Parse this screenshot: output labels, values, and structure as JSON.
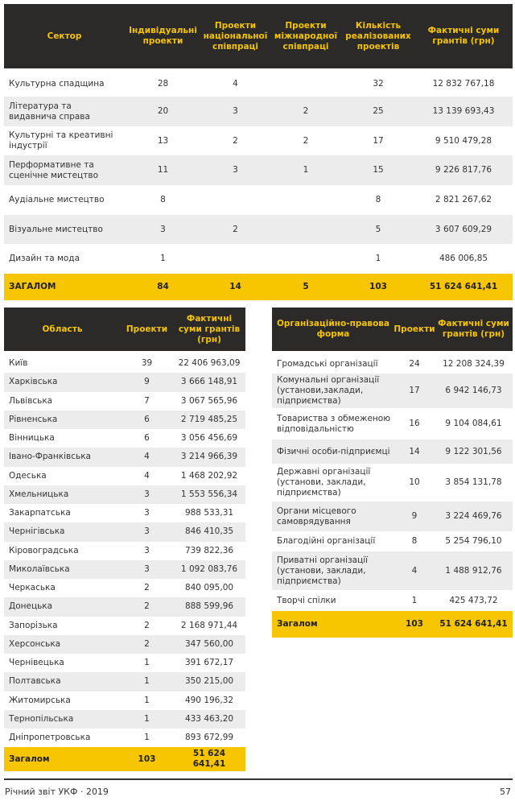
{
  "sector_table": {
    "columns": [
      "Сектор",
      "Індивідуальні проекти",
      "Проекти національної співпраці",
      "Проекти міжнародної співпраці",
      "Кількість реалізованих проектів",
      "Фактичні суми грантів (грн)"
    ],
    "rows": [
      [
        "Культурна спадщина",
        "28",
        "4",
        null,
        "32",
        "12 832 767,18"
      ],
      [
        "Література та видавнича справа",
        "20",
        "3",
        "2",
        "25",
        "13 139 693,43"
      ],
      [
        "Культурні та креативні індустрії",
        "13",
        "2",
        "2",
        "17",
        "9 510 479,28"
      ],
      [
        "Перформативне та сценічне мистецтво",
        "11",
        "3",
        "1",
        "15",
        "9 226 817,76"
      ],
      [
        "Аудіальне мистецтво",
        "8",
        null,
        null,
        "8",
        "2 821 267,62"
      ],
      [
        "Візуальне мистецтво",
        "3",
        "2",
        null,
        "5",
        "3 607 609,29"
      ],
      [
        "Дизайн та мода",
        "1",
        null,
        null,
        "1",
        "486 006,85"
      ]
    ],
    "total": [
      "ЗАГАЛОМ",
      "84",
      "14",
      "5",
      "103",
      "51 624 641,41"
    ]
  },
  "region_table": {
    "columns": [
      "Область",
      "Проекти",
      "Фактичні суми грантів (грн)"
    ],
    "rows": [
      [
        "Київ",
        "39",
        "22 406 963,09"
      ],
      [
        "Харківська",
        "9",
        "3 666 148,91"
      ],
      [
        "Львівська",
        "7",
        "3 067 565,96"
      ],
      [
        "Рівненська",
        "6",
        "2 719 485,25"
      ],
      [
        "Вінницька",
        "6",
        "3 056 456,69"
      ],
      [
        "Івано-Франківська",
        "4",
        "3 214 966,39"
      ],
      [
        "Одеська",
        "4",
        "1 468 202,92"
      ],
      [
        "Хмельницька",
        "3",
        "1 553 556,34"
      ],
      [
        "Закарпатська",
        "3",
        "988 533,31"
      ],
      [
        "Чернігівська",
        "3",
        "846 410,35"
      ],
      [
        "Кіровоградська",
        "3",
        "739 822,36"
      ],
      [
        "Миколаївська",
        "3",
        "1 092 083,76"
      ],
      [
        "Черкаська",
        "2",
        "840 095,00"
      ],
      [
        "Донецька",
        "2",
        "888 599,96"
      ],
      [
        "Запорізька",
        "2",
        "2 168 971,44"
      ],
      [
        "Херсонська",
        "2",
        "347 560,00"
      ],
      [
        "Чернівецька",
        "1",
        "391 672,17"
      ],
      [
        "Полтавська",
        "1",
        "350 215,00"
      ],
      [
        "Житомирська",
        "1",
        "490 196,32"
      ],
      [
        "Тернопільська",
        "1",
        "433 463,20"
      ],
      [
        "Дніпропетровська",
        "1",
        "893 672,99"
      ]
    ],
    "total": [
      "Загалом",
      "103",
      "51 624 641,41"
    ]
  },
  "org_table": {
    "columns": [
      "Організаційно-правова форма",
      "Проекти",
      "Фактичні суми грантів (грн)"
    ],
    "rows": [
      [
        "Громадські організації",
        "24",
        "12 208 324,39"
      ],
      [
        "Комунальні організації (установи,заклади, підприємства)",
        "17",
        "6 942 146,73"
      ],
      [
        "Товариства з обмеженою відповідальністю",
        "16",
        "9 104 084,61"
      ],
      [
        "Фізичні особи-підприємці",
        "14",
        "9 122 301,56"
      ],
      [
        "Державні організації (установи, заклади, підприємства)",
        "10",
        "3 854 131,78"
      ],
      [
        "Органи місцевого самоврядування",
        "9",
        "3 224 469,76"
      ],
      [
        "Благодійні організації",
        "8",
        "5 254 796,10"
      ],
      [
        "Приватні організації (установи, заклади, підприємства)",
        "4",
        "1 488 912,76"
      ],
      [
        "Творчі спілки",
        "1",
        "425 473,72"
      ]
    ],
    "total": [
      "Загалом",
      "103",
      "51 624 641,41"
    ]
  },
  "footer": {
    "left": "Річний звіт УКФ · 2019",
    "page": "57"
  }
}
